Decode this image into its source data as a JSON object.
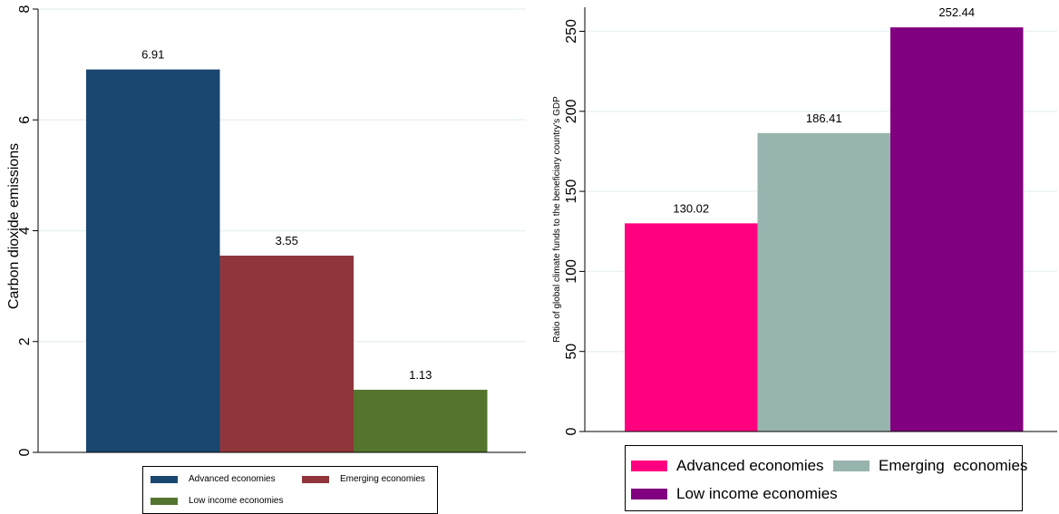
{
  "chart_data": [
    {
      "type": "bar",
      "categories": [
        "Advanced economies",
        "Emerging economies",
        "Low income economies"
      ],
      "values": [
        6.91,
        3.55,
        1.13
      ],
      "data_labels": [
        "6.91",
        "3.55",
        "1.13"
      ],
      "colors": [
        "#1a476f",
        "#90353b",
        "#55752f"
      ],
      "ylabel": "Carbon dioxide emissions",
      "ylim": [
        0,
        8
      ],
      "yticks": [
        0,
        2,
        4,
        6,
        8
      ],
      "ytick_labels": [
        "0",
        "2",
        "4",
        "6",
        "8"
      ],
      "grid": true,
      "legend": {
        "placement": "bottom",
        "entries": [
          "Advanced economies",
          "Emerging economies",
          "Low income economies"
        ]
      }
    },
    {
      "type": "bar",
      "categories": [
        "Advanced economies",
        "Emerging  economies",
        "Low income economies"
      ],
      "values": [
        130.02,
        186.41,
        252.44
      ],
      "data_labels": [
        "130.02",
        "186.41",
        "252.44"
      ],
      "colors": [
        "#ff0080",
        "#98b4ae",
        "#800080"
      ],
      "ylabel": "Ratio of global climate funds to the beneficiary country's GDP",
      "ylim": [
        0,
        265
      ],
      "yticks": [
        0,
        50,
        100,
        150,
        200,
        250
      ],
      "ytick_labels": [
        "0",
        "50",
        "100",
        "150",
        "200",
        "250"
      ],
      "grid": true,
      "legend": {
        "placement": "bottom",
        "entries": [
          "Advanced economies",
          "Emerging  economies",
          "Low income economies"
        ]
      }
    }
  ]
}
